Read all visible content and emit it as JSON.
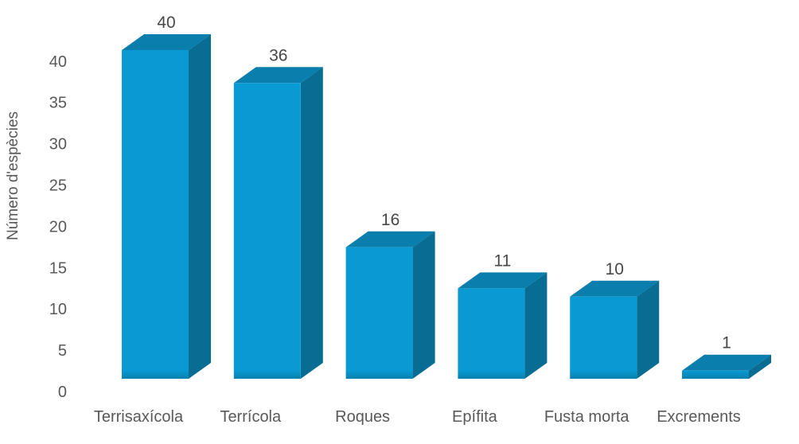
{
  "chart_data": {
    "type": "bar",
    "bar_style": "3d",
    "title": "",
    "xlabel": "",
    "ylabel": "Número d'espècies",
    "categories": [
      "Terrisaxícola",
      "Terrícola",
      "Roques",
      "Epífita",
      "Fusta morta",
      "Excrements"
    ],
    "values": [
      40,
      36,
      16,
      11,
      10,
      1
    ],
    "data_labels": [
      "40",
      "36",
      "16",
      "11",
      "10",
      "1"
    ],
    "yticks": [
      0,
      5,
      10,
      15,
      20,
      25,
      30,
      35,
      40
    ],
    "ylim": [
      0,
      40
    ],
    "grid": false,
    "legend": false,
    "colors": {
      "bar_front": "#0999D3",
      "bar_front_bottom": "#0780AD",
      "bar_top": "#0A7EAC",
      "bar_side": "#086C93",
      "axis_text": "#595959",
      "data_label_text": "#474747",
      "background": "#FFFFFF"
    }
  }
}
